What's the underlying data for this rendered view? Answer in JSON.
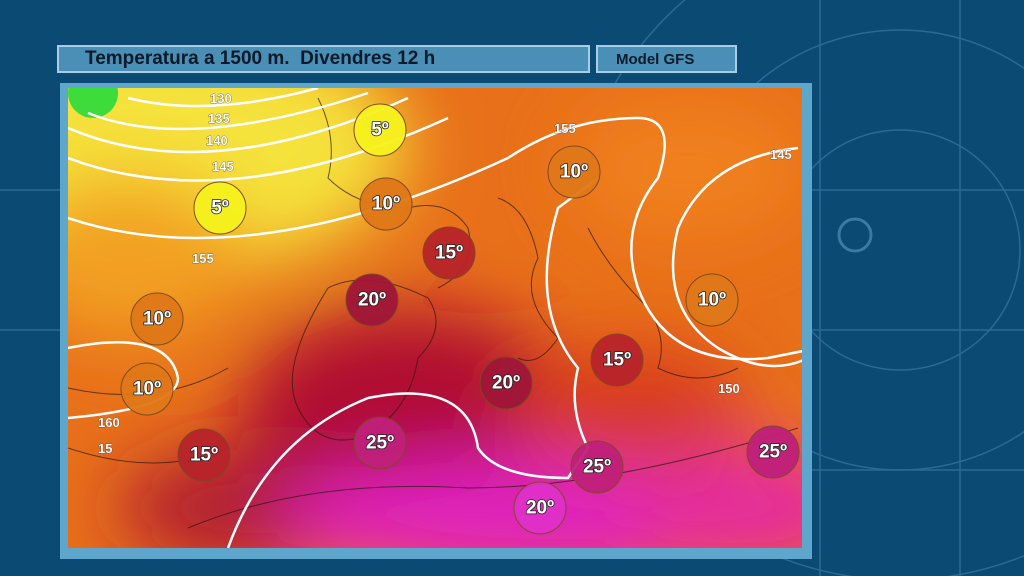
{
  "header": {
    "title": "Temperatura a 1500 m.  Divendres 12 h",
    "model": "Model GFS"
  },
  "map": {
    "temperatures": [
      "5º",
      "5º",
      "10º",
      "10º",
      "15º",
      "20º",
      "10º",
      "10º",
      "15º",
      "20º",
      "15º",
      "25º",
      "25º",
      "20º",
      "25º",
      "10º"
    ],
    "isolines": [
      "130",
      "135",
      "140",
      "145",
      "155",
      "155",
      "145",
      "150",
      "160",
      "15"
    ]
  }
}
